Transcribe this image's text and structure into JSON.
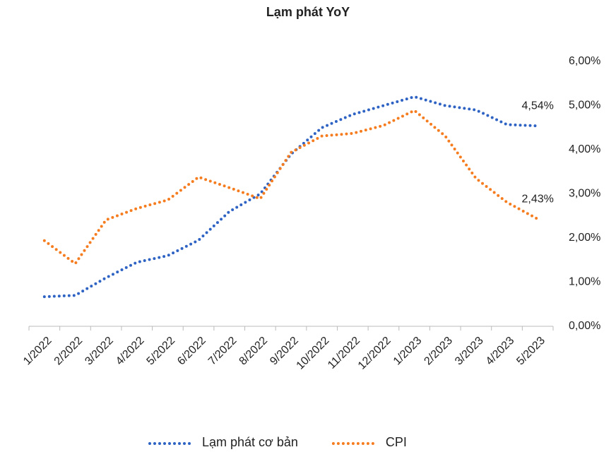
{
  "chart_data": {
    "type": "line",
    "title": "Lạm phát YoY",
    "categories": [
      "1/2022",
      "2/2022",
      "3/2022",
      "4/2022",
      "5/2022",
      "6/2022",
      "7/2022",
      "8/2022",
      "9/2022",
      "10/2022",
      "11/2022",
      "12/2022",
      "1/2023",
      "2/2023",
      "3/2023",
      "4/2023",
      "5/2023"
    ],
    "series": [
      {
        "name": "Lạm phát cơ bản",
        "color": "#2e63c4",
        "values": [
          0.67,
          0.7,
          1.1,
          1.45,
          1.6,
          1.95,
          2.6,
          3.0,
          3.9,
          4.5,
          4.8,
          5.0,
          5.2,
          5.0,
          4.9,
          4.57,
          4.54
        ],
        "value_labels": [
          null,
          null,
          null,
          null,
          null,
          null,
          null,
          null,
          null,
          null,
          null,
          null,
          null,
          null,
          null,
          null,
          "4,54%"
        ]
      },
      {
        "name": "CPI",
        "color": "#f57c1f",
        "values": [
          1.94,
          1.42,
          2.41,
          2.67,
          2.86,
          3.38,
          3.14,
          2.89,
          3.94,
          4.31,
          4.37,
          4.55,
          4.89,
          4.31,
          3.35,
          2.81,
          2.43
        ],
        "value_labels": [
          null,
          null,
          null,
          null,
          null,
          null,
          null,
          null,
          null,
          null,
          null,
          null,
          null,
          null,
          null,
          null,
          "2,43%"
        ]
      }
    ],
    "ylim": [
      0,
      6
    ],
    "yticks": [
      {
        "value": 0,
        "label": "0,00%"
      },
      {
        "value": 1,
        "label": "1,00%"
      },
      {
        "value": 2,
        "label": "2,00%"
      },
      {
        "value": 3,
        "label": "3,00%"
      },
      {
        "value": 4,
        "label": "4,00%"
      },
      {
        "value": 5,
        "label": "5,00%"
      },
      {
        "value": 6,
        "label": "6,00%"
      }
    ],
    "legend": "bottom"
  }
}
